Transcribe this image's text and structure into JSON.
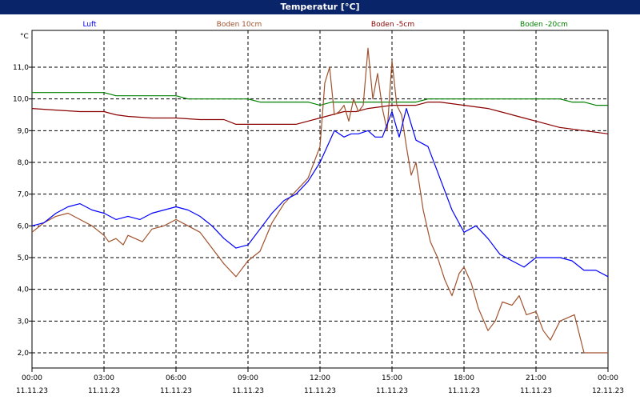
{
  "window": {
    "title": "Temperatur [°C]"
  },
  "chart_data": {
    "type": "line",
    "title": "Temperatur [°C]",
    "ylabel": "°C",
    "ylim": [
      1.8,
      12.0
    ],
    "yticks": [
      "2,0",
      "3,0",
      "4,0",
      "5,0",
      "6,0",
      "7,0",
      "8,0",
      "9,0",
      "10,0",
      "11,0"
    ],
    "ytick_values": [
      2,
      3,
      4,
      5,
      6,
      7,
      8,
      9,
      10,
      11
    ],
    "xlim": [
      0,
      24
    ],
    "xticks": [
      {
        "time": "00:00",
        "date": "11.11.23",
        "h": 0
      },
      {
        "time": "03:00",
        "date": "11.11.23",
        "h": 3
      },
      {
        "time": "06:00",
        "date": "11.11.23",
        "h": 6
      },
      {
        "time": "09:00",
        "date": "11.11.23",
        "h": 9
      },
      {
        "time": "12:00",
        "date": "11.11.23",
        "h": 12
      },
      {
        "time": "15:00",
        "date": "11.11.23",
        "h": 15
      },
      {
        "time": "18:00",
        "date": "11.11.23",
        "h": 18
      },
      {
        "time": "21:00",
        "date": "11.11.23",
        "h": 21
      },
      {
        "time": "00:00",
        "date": "12.11.23",
        "h": 24
      }
    ],
    "grid": true,
    "legend_position": "top",
    "series": [
      {
        "name": "Luft",
        "color": "#0000ff",
        "x": [
          0,
          0.5,
          1,
          1.5,
          2,
          2.5,
          3,
          3.5,
          4,
          4.5,
          5,
          5.5,
          6,
          6.5,
          7,
          7.5,
          8,
          8.5,
          9,
          9.5,
          10,
          10.5,
          11,
          11.5,
          12,
          12.3,
          12.6,
          13,
          13.3,
          13.6,
          14,
          14.3,
          14.6,
          15,
          15.3,
          15.6,
          16,
          16.5,
          17,
          17.5,
          18,
          18.5,
          19,
          19.5,
          20,
          20.5,
          21,
          21.5,
          22,
          22.5,
          23,
          23.5,
          24
        ],
        "y": [
          6.0,
          6.1,
          6.4,
          6.6,
          6.7,
          6.5,
          6.4,
          6.2,
          6.3,
          6.2,
          6.4,
          6.5,
          6.6,
          6.5,
          6.3,
          6.0,
          5.6,
          5.3,
          5.4,
          5.9,
          6.4,
          6.8,
          7.0,
          7.4,
          8.0,
          8.5,
          9.0,
          8.8,
          8.9,
          8.9,
          9.0,
          8.8,
          8.8,
          9.6,
          8.8,
          9.7,
          8.7,
          8.5,
          7.5,
          6.5,
          5.8,
          6.0,
          5.6,
          5.1,
          4.9,
          4.7,
          5.0,
          5.0,
          5.0,
          4.9,
          4.6,
          4.6,
          4.4
        ]
      },
      {
        "name": "Boden 10cm",
        "color": "#a0522d",
        "x": [
          0,
          0.5,
          1,
          1.5,
          2,
          2.5,
          3,
          3.2,
          3.5,
          3.8,
          4,
          4.3,
          4.6,
          5,
          5.5,
          6,
          6.5,
          7,
          7.5,
          8,
          8.5,
          9,
          9.5,
          10,
          10.5,
          11,
          11.5,
          12,
          12.2,
          12.4,
          12.6,
          12.8,
          13,
          13.2,
          13.4,
          13.6,
          13.8,
          14,
          14.2,
          14.4,
          14.6,
          14.8,
          15,
          15.2,
          15.4,
          15.6,
          15.8,
          16,
          16.3,
          16.6,
          16.9,
          17.2,
          17.5,
          17.8,
          18,
          18.3,
          18.6,
          19,
          19.3,
          19.6,
          20,
          20.3,
          20.6,
          21,
          21.3,
          21.6,
          22,
          22.3,
          22.6,
          23,
          23.3,
          23.6,
          24
        ],
        "y": [
          5.8,
          6.1,
          6.3,
          6.4,
          6.2,
          6.0,
          5.7,
          5.5,
          5.6,
          5.4,
          5.7,
          5.6,
          5.5,
          5.9,
          6.0,
          6.2,
          6.0,
          5.8,
          5.3,
          4.8,
          4.4,
          4.9,
          5.2,
          6.1,
          6.7,
          7.1,
          7.5,
          8.5,
          10.5,
          11.0,
          9.5,
          9.6,
          9.8,
          9.3,
          10.0,
          9.6,
          9.8,
          11.6,
          10.0,
          10.8,
          9.7,
          9.0,
          11.2,
          9.8,
          9.5,
          8.5,
          7.6,
          8.0,
          6.5,
          5.5,
          5.0,
          4.3,
          3.8,
          4.5,
          4.7,
          4.2,
          3.4,
          2.7,
          3.0,
          3.6,
          3.5,
          3.8,
          3.2,
          3.3,
          2.7,
          2.4,
          3.0,
          3.1,
          3.2,
          2.0,
          2.0,
          2.0,
          2.0
        ]
      },
      {
        "name": "Boden -5cm",
        "color": "#8b0000",
        "x": [
          0,
          1,
          2,
          3,
          3.5,
          4,
          5,
          6,
          7,
          8,
          8.5,
          9,
          10,
          11,
          11.5,
          12,
          12.5,
          13,
          13.5,
          14,
          14.5,
          15,
          15.5,
          16,
          16.5,
          17,
          17.5,
          18,
          18.5,
          19,
          19.5,
          20,
          20.5,
          21,
          21.5,
          22,
          22.5,
          23,
          23.5,
          24
        ],
        "y": [
          9.7,
          9.65,
          9.6,
          9.6,
          9.5,
          9.45,
          9.4,
          9.4,
          9.35,
          9.35,
          9.2,
          9.2,
          9.2,
          9.2,
          9.3,
          9.4,
          9.5,
          9.6,
          9.6,
          9.7,
          9.75,
          9.8,
          9.8,
          9.8,
          9.9,
          9.9,
          9.85,
          9.8,
          9.75,
          9.7,
          9.6,
          9.5,
          9.4,
          9.3,
          9.2,
          9.1,
          9.05,
          9.0,
          8.95,
          8.9
        ]
      },
      {
        "name": "Boden -20cm",
        "color": "#008000",
        "x": [
          0,
          1,
          2,
          3,
          3.5,
          4,
          5,
          6,
          6.5,
          7,
          8,
          9,
          9.5,
          10,
          11,
          11.5,
          12,
          12.5,
          13,
          14,
          14.5,
          15,
          15.5,
          16,
          16.5,
          17,
          17.5,
          18,
          18.5,
          19,
          20,
          21,
          22,
          22.5,
          23,
          23.5,
          24
        ],
        "y": [
          10.2,
          10.2,
          10.2,
          10.2,
          10.1,
          10.1,
          10.1,
          10.1,
          10.0,
          10.0,
          10.0,
          10.0,
          9.9,
          9.9,
          9.9,
          9.9,
          9.8,
          9.9,
          9.9,
          9.9,
          9.9,
          9.9,
          9.9,
          9.9,
          10.0,
          10.0,
          10.0,
          10.0,
          10.0,
          10.0,
          10.0,
          10.0,
          10.0,
          9.9,
          9.9,
          9.8,
          9.8
        ]
      }
    ]
  }
}
